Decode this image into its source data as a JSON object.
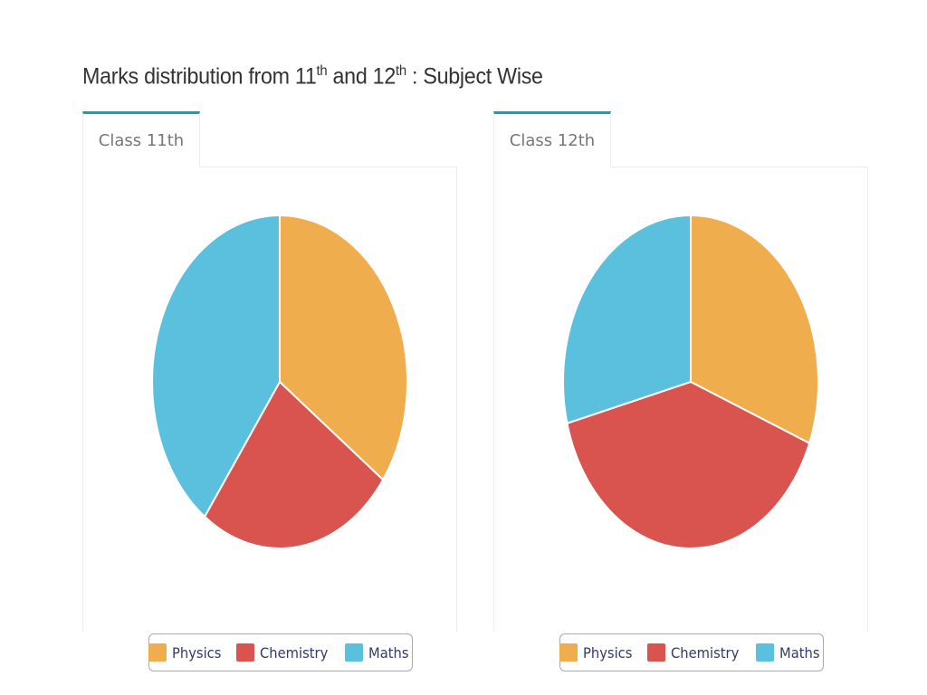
{
  "page": {
    "title_parts": {
      "part1": "Marks distribution from 11",
      "sup1": "th",
      "part2": " and 12",
      "sup2": "th",
      "part3": " : Subject Wise"
    }
  },
  "chart_data": [
    {
      "type": "pie",
      "tab_label": "Class 11th",
      "categories": [
        "Physics",
        "Chemistry",
        "Maths"
      ],
      "values": [
        35,
        25,
        40
      ],
      "colors": [
        "#f0ad4e",
        "#d9534f",
        "#5bc0de"
      ]
    },
    {
      "type": "pie",
      "tab_label": "Class 12th",
      "categories": [
        "Physics",
        "Chemistry",
        "Maths"
      ],
      "values": [
        31,
        40,
        29
      ],
      "colors": [
        "#f0ad4e",
        "#d9534f",
        "#5bc0de"
      ]
    }
  ]
}
